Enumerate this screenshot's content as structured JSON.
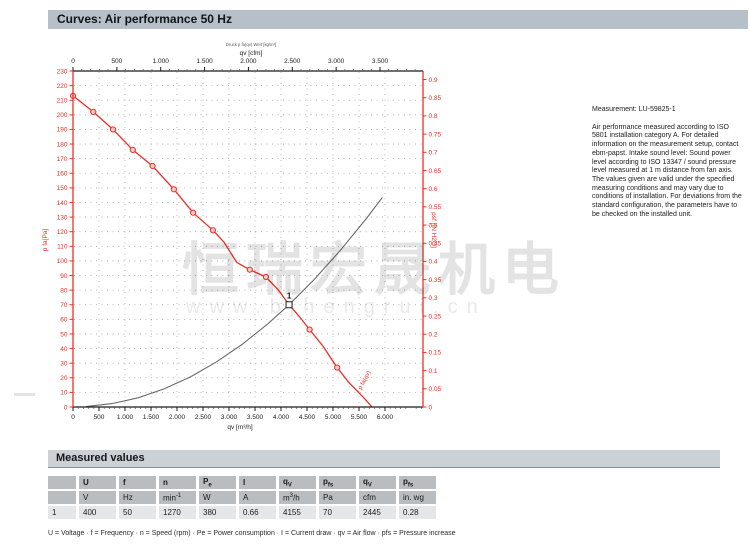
{
  "page": {
    "title": "Curves: Air performance 50 Hz"
  },
  "watermark": {
    "text": "恒瑞宏晟机电",
    "url": "www.bjhengrui.cn"
  },
  "measurement": {
    "label": "Measurement: LU-59825-1",
    "body": "Air performance measured according to ISO 5801 installation category A. For detailed information on the measurement setup, contact ebm-papst. Intake sound level: Sound power level according to ISO 13347 / sound pressure level measured at 1 m distance from fan axis. The values given are valid under the specified measuring conditions and may vary due to conditions of installation. For deviations from the standard configuration, the parameters have to be checked on the installed unit."
  },
  "chart_data": {
    "type": "line",
    "title": "Air performance 50 Hz",
    "note_above_top_axis": "Druck p fa(qv) Wert [kg/m³]",
    "x_axis_bottom": {
      "label": "qv [m³/h]",
      "min": 0,
      "max": 6730,
      "tick_values": [
        0,
        500,
        1000,
        1500,
        2000,
        2500,
        3000,
        3500,
        4000,
        4500,
        5000,
        5500,
        6000
      ],
      "tick_labels": [
        "0",
        "500",
        "1.000",
        "1.500",
        "2.000",
        "2.500",
        "3.000",
        "3.500",
        "4.000",
        "4.500",
        "5.000",
        "5.500",
        "6.000"
      ],
      "minor_tick_step": 100
    },
    "x_axis_top": {
      "label": "qv [cfm]",
      "min": 0,
      "max": 3990,
      "tick_values": [
        0,
        500,
        1000,
        1500,
        2000,
        2500,
        3000,
        3500
      ],
      "tick_labels": [
        "0",
        "500",
        "1.000",
        "1.500",
        "2.000",
        "2.500",
        "3.000",
        "3.500"
      ],
      "minor_tick_step": 100
    },
    "y_axis_left": {
      "label": "p fa[Pa]",
      "min": 0,
      "max": 230,
      "step": 10,
      "color": "#ee2e24"
    },
    "y_axis_right": {
      "label": "psf [IN H2O]",
      "min": 0,
      "max": 0.9,
      "step": 0.05,
      "color": "#ee2e24"
    },
    "grid": {
      "h_step_pa": 10,
      "v_step_m3h": 500,
      "style": "dotted",
      "color": "#969ca3"
    },
    "series": [
      {
        "name": "fan-pressure-curve",
        "curve_label": "p fa(qv)",
        "color": "#ee2e24",
        "points": [
          [
            0,
            213
          ],
          [
            390,
            202
          ],
          [
            770,
            190
          ],
          [
            1150,
            176
          ],
          [
            1530,
            165
          ],
          [
            1940,
            149
          ],
          [
            2310,
            133
          ],
          [
            2690,
            121
          ],
          [
            2900,
            113
          ],
          [
            3150,
            99
          ],
          [
            3400,
            94
          ],
          [
            3710,
            89
          ],
          [
            3950,
            80
          ],
          [
            4155,
            70
          ],
          [
            4350,
            62
          ],
          [
            4550,
            53
          ],
          [
            4800,
            42
          ],
          [
            5080,
            27
          ],
          [
            5300,
            17
          ],
          [
            5600,
            6
          ],
          [
            5750,
            0
          ]
        ],
        "marker_points": [
          [
            0,
            213
          ],
          [
            390,
            202
          ],
          [
            770,
            190
          ],
          [
            1150,
            176
          ],
          [
            1530,
            165
          ],
          [
            1940,
            149
          ],
          [
            2310,
            133
          ],
          [
            2690,
            121
          ],
          [
            3400,
            94
          ],
          [
            3710,
            89
          ],
          [
            4550,
            53
          ],
          [
            5080,
            27
          ]
        ]
      },
      {
        "name": "system-characteristic-curve",
        "color": "#6b6b6b",
        "points": [
          [
            250,
            0.3
          ],
          [
            750,
            2.3
          ],
          [
            1250,
            6.3
          ],
          [
            1750,
            12.4
          ],
          [
            2250,
            20.5
          ],
          [
            2750,
            30.7
          ],
          [
            3250,
            42.8
          ],
          [
            3750,
            57.0
          ],
          [
            4155,
            70
          ],
          [
            4650,
            87.7
          ],
          [
            5150,
            107.6
          ],
          [
            5650,
            129.4
          ],
          [
            5950,
            143.5
          ]
        ]
      }
    ],
    "operating_point": {
      "label": "1",
      "qv_m3h": 4155,
      "p_fa_pa": 70
    }
  },
  "measured_values": {
    "section_title": "Measured values",
    "columns": [
      {
        "sym": "",
        "sub": "",
        "unit": ""
      },
      {
        "sym": "U",
        "sub": "",
        "unit": "V"
      },
      {
        "sym": "f",
        "sub": "",
        "unit": "Hz"
      },
      {
        "sym": "n",
        "sub": "",
        "unit": "min⁻¹"
      },
      {
        "sym": "P",
        "sub": "e",
        "unit": "W"
      },
      {
        "sym": "I",
        "sub": "",
        "unit": "A"
      },
      {
        "sym": "q",
        "sub": "V",
        "unit": "m³/h"
      },
      {
        "sym": "p",
        "sub": "fs",
        "unit": "Pa"
      },
      {
        "sym": "q",
        "sub": "V",
        "unit": "cfm"
      },
      {
        "sym": "p",
        "sub": "fs",
        "unit": "in. wg"
      }
    ],
    "rows": [
      [
        "1",
        "400",
        "50",
        "1270",
        "380",
        "0.66",
        "4155",
        "70",
        "2445",
        "0.28"
      ]
    ],
    "legend": "U = Voltage · f = Frequency · n = Speed (rpm) · Pe = Power consumption · I = Current draw · qv = Air flow · pfs = Pressure increase"
  }
}
